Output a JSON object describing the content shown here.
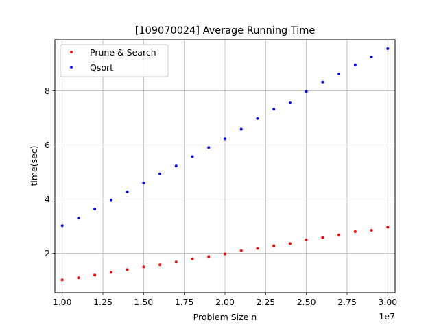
{
  "chart_data": {
    "type": "scatter",
    "title": "[109070024] Average Running Time",
    "xlabel": "Problem Size n",
    "ylabel": "time(sec)",
    "x_offset_label": "1e7",
    "x_scale": 10000000,
    "xlim": [
      0.955,
      3.045
    ],
    "ylim": [
      0.55,
      9.88
    ],
    "xticks": [
      1.0,
      1.25,
      1.5,
      1.75,
      2.0,
      2.25,
      2.5,
      2.75,
      3.0
    ],
    "xtick_labels": [
      "1.00",
      "1.25",
      "1.50",
      "1.75",
      "2.00",
      "2.25",
      "2.50",
      "2.75",
      "3.00"
    ],
    "yticks": [
      2,
      4,
      6,
      8
    ],
    "ytick_labels": [
      "2",
      "4",
      "6",
      "8"
    ],
    "grid": true,
    "legend_position": "top-left",
    "x": [
      10000000,
      11000000,
      12000000,
      13000000,
      14000000,
      15000000,
      16000000,
      17000000,
      18000000,
      19000000,
      20000000,
      21000000,
      22000000,
      23000000,
      24000000,
      25000000,
      26000000,
      27000000,
      28000000,
      29000000,
      30000000
    ],
    "series": [
      {
        "name": "Prune & Search",
        "color": "#ff0000",
        "values": [
          1.02,
          1.1,
          1.2,
          1.3,
          1.4,
          1.5,
          1.58,
          1.68,
          1.8,
          1.88,
          1.98,
          2.1,
          2.18,
          2.28,
          2.36,
          2.5,
          2.58,
          2.68,
          2.8,
          2.85,
          2.97
        ]
      },
      {
        "name": "Qsort",
        "color": "#0000ff",
        "values": [
          3.02,
          3.3,
          3.63,
          3.97,
          4.27,
          4.6,
          4.93,
          5.22,
          5.57,
          5.9,
          6.23,
          6.58,
          6.98,
          7.32,
          7.55,
          7.97,
          8.32,
          8.62,
          8.95,
          9.25,
          9.55
        ]
      }
    ]
  }
}
